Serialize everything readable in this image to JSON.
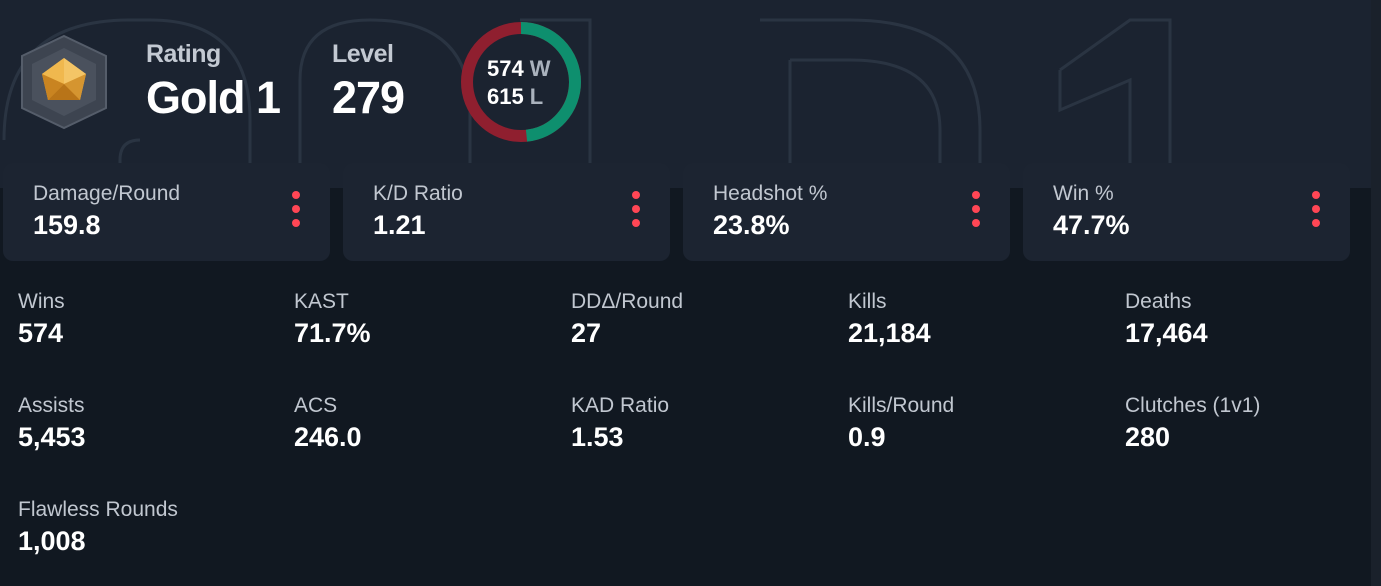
{
  "header": {
    "rating_label": "Rating",
    "rating_value": "Gold 1",
    "level_label": "Level",
    "level_value": "279",
    "wins_count": "574",
    "wins_suffix": "W",
    "losses_count": "615",
    "losses_suffix": "L",
    "win_fraction": 0.483,
    "win_color": "#0e8f6e",
    "loss_color": "#8f1f2f",
    "rank_icon": "gold-rank-icon",
    "watermark_text": "Gold 1"
  },
  "cards": [
    {
      "label": "Damage/Round",
      "value": "159.8"
    },
    {
      "label": "K/D Ratio",
      "value": "1.21"
    },
    {
      "label": "Headshot %",
      "value": "23.8%"
    },
    {
      "label": "Win %",
      "value": "47.7%"
    }
  ],
  "card_menu_icon": "kebab-menu-icon",
  "accent_color": "#ff4655",
  "stats": [
    {
      "label": "Wins",
      "value": "574"
    },
    {
      "label": "KAST",
      "value": "71.7%"
    },
    {
      "label": "DDΔ/Round",
      "value": "27"
    },
    {
      "label": "Kills",
      "value": "21,184"
    },
    {
      "label": "Deaths",
      "value": "17,464"
    },
    {
      "label": "Assists",
      "value": "5,453"
    },
    {
      "label": "ACS",
      "value": "246.0"
    },
    {
      "label": "KAD Ratio",
      "value": "1.53"
    },
    {
      "label": "Kills/Round",
      "value": "0.9"
    },
    {
      "label": "Clutches (1v1)",
      "value": "280"
    },
    {
      "label": "Flawless Rounds",
      "value": "1,008"
    }
  ]
}
